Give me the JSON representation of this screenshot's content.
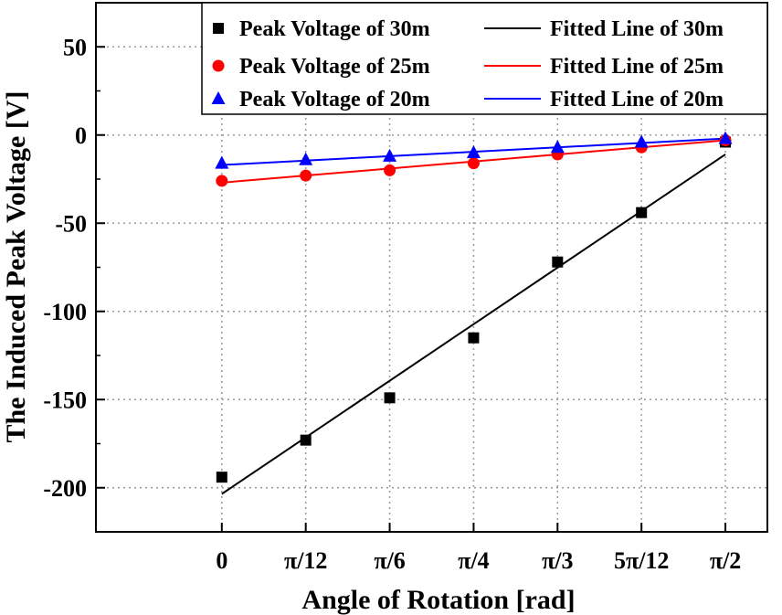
{
  "chart_data": {
    "type": "scatter",
    "title": "",
    "xlabel": "Angle of Rotation [rad]",
    "ylabel": "The Induced Peak Voltage [V]",
    "categories": [
      "0",
      "π/12",
      "π/6",
      "π/4",
      "π/3",
      "5π/12",
      "π/2"
    ],
    "x_values": [
      0,
      0.2618,
      0.5236,
      0.7854,
      1.0472,
      1.309,
      1.5708
    ],
    "xlim": [
      -0.3927,
      1.7017
    ],
    "ylim": [
      -225,
      75
    ],
    "yticks": [
      50,
      0,
      -50,
      -100,
      -150,
      -200
    ],
    "grid": true,
    "legend_position": "top-right",
    "series": [
      {
        "name": "Peak Voltage of 30m",
        "marker": "square",
        "color": "#000000",
        "values": [
          -194,
          -173,
          -149,
          -115,
          -72,
          -44,
          -4
        ],
        "fit_name": "Fitted Line of 30m",
        "fit": [
          -203.5,
          -11
        ]
      },
      {
        "name": "Peak Voltage of 25m",
        "marker": "circle",
        "color": "#ff0000",
        "values": [
          -26,
          -23,
          -20,
          -16,
          -11,
          -7,
          -3
        ],
        "fit_name": "Fitted Line of 25m",
        "fit": [
          -27,
          -3
        ]
      },
      {
        "name": "Peak Voltage of 20m",
        "marker": "triangle",
        "color": "#0000ff",
        "values": [
          -16,
          -14,
          -12,
          -10,
          -7,
          -4,
          -2
        ],
        "fit_name": "Fitted Line of 20m",
        "fit": [
          -17,
          -2
        ]
      }
    ]
  }
}
